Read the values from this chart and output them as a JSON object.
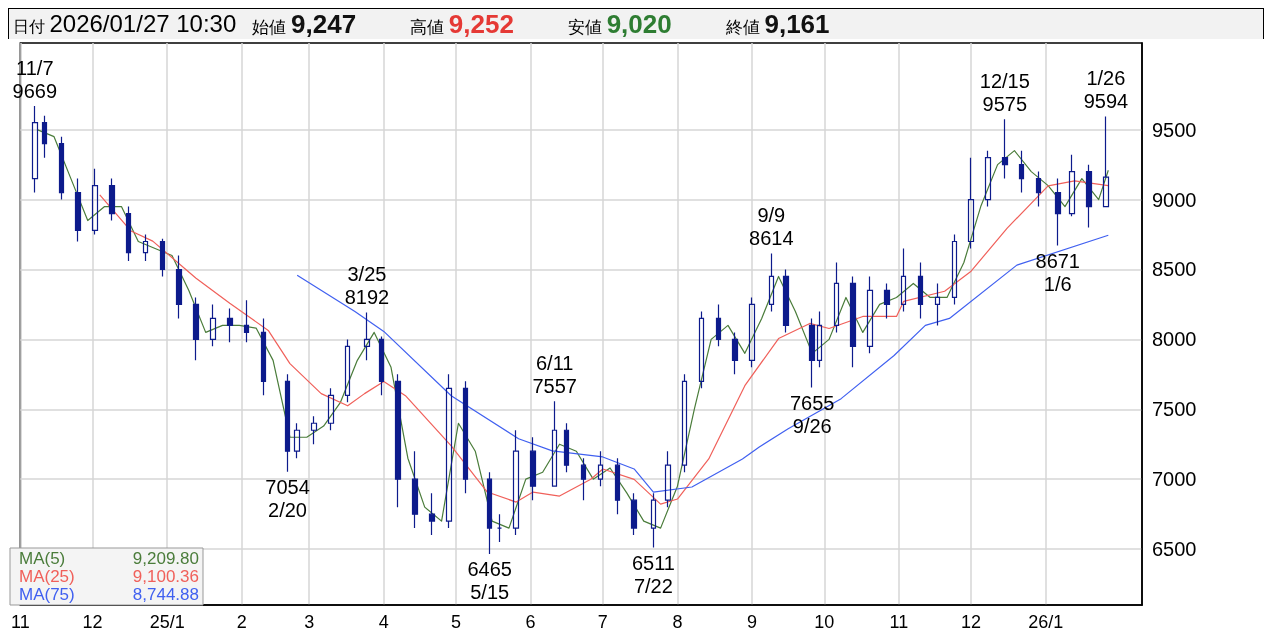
{
  "chart_data": {
    "type": "candlestick",
    "title": "日付 2026/01/27 10:30",
    "annotations": [
      "始値 9,247",
      "高値 9,252",
      "安値 9,020",
      "終値 9,161",
      "9,209.80",
      "9,100.36",
      "8,744.88",
      {
        "text": "11/7\n9669",
        "x": "2024-11-07",
        "y": 9669
      },
      {
        "text": "7054\n2/20",
        "x": "2025-02-20",
        "y": 7054
      },
      {
        "text": "3/25\n8192",
        "x": "2025-03-25",
        "y": 8192
      },
      {
        "text": "6465\n5/15",
        "x": "2025-05-15",
        "y": 6465
      },
      {
        "text": "6/11\n7557",
        "x": "2025-06-11",
        "y": 7557
      },
      {
        "text": "6511\n7/22",
        "x": "2025-07-22",
        "y": 6511
      },
      {
        "text": "9/9\n8614",
        "x": "2025-09-09",
        "y": 8614
      },
      {
        "text": "7655\n9/26",
        "x": "2025-09-26",
        "y": 7655
      },
      {
        "text": "12/15\n9575",
        "x": "2025-12-15",
        "y": 9575
      },
      {
        "text": "8671\n1/6",
        "x": "2026-01-06",
        "y": 8671
      },
      {
        "text": "1/26\n9594",
        "x": "2026-01-26",
        "y": 9594
      }
    ],
    "color": "#0d1b8c",
    "x": [
      "2024-11-07",
      "2024-11-11",
      "2024-11-18",
      "2024-11-25",
      "2024-12-02",
      "2024-12-09",
      "2024-12-16",
      "2024-12-23",
      "2024-12-30",
      "2025-01-06",
      "2025-01-13",
      "2025-01-20",
      "2025-01-27",
      "2025-02-03",
      "2025-02-10",
      "2025-02-20",
      "2025-02-24",
      "2025-03-03",
      "2025-03-10",
      "2025-03-17",
      "2025-03-25",
      "2025-03-31",
      "2025-04-07",
      "2025-04-14",
      "2025-04-21",
      "2025-04-28",
      "2025-05-05",
      "2025-05-15",
      "2025-05-19",
      "2025-05-26",
      "2025-06-02",
      "2025-06-11",
      "2025-06-16",
      "2025-06-23",
      "2025-06-30",
      "2025-07-07",
      "2025-07-14",
      "2025-07-22",
      "2025-07-28",
      "2025-08-04",
      "2025-08-11",
      "2025-08-18",
      "2025-08-25",
      "2025-09-01",
      "2025-09-09",
      "2025-09-15",
      "2025-09-26",
      "2025-09-29",
      "2025-10-06",
      "2025-10-13",
      "2025-10-20",
      "2025-10-27",
      "2025-11-03",
      "2025-11-10",
      "2025-11-17",
      "2025-11-24",
      "2025-12-01",
      "2025-12-08",
      "2025-12-15",
      "2025-12-22",
      "2025-12-29",
      "2026-01-06",
      "2026-01-12",
      "2026-01-19",
      "2026-01-26"
    ],
    "ohlc": [
      [
        9150,
        9669,
        9050,
        9550
      ],
      [
        9550,
        9600,
        9300,
        9400
      ],
      [
        9400,
        9450,
        9000,
        9050
      ],
      [
        9050,
        9150,
        8700,
        8780
      ],
      [
        8780,
        9220,
        8750,
        9100
      ],
      [
        9100,
        9150,
        8850,
        8900
      ],
      [
        8900,
        8950,
        8560,
        8620
      ],
      [
        8620,
        8750,
        8560,
        8700
      ],
      [
        8700,
        8720,
        8450,
        8500
      ],
      [
        8500,
        8600,
        8150,
        8250
      ],
      [
        8250,
        8300,
        7850,
        8000
      ],
      [
        8000,
        8250,
        7950,
        8150
      ],
      [
        8150,
        8220,
        7980,
        8100
      ],
      [
        8100,
        8280,
        7980,
        8050
      ],
      [
        8050,
        8150,
        7600,
        7700
      ],
      [
        7700,
        7750,
        7054,
        7200
      ],
      [
        7200,
        7400,
        7150,
        7350
      ],
      [
        7350,
        7450,
        7250,
        7400
      ],
      [
        7400,
        7650,
        7350,
        7600
      ],
      [
        7600,
        8000,
        7550,
        7950
      ],
      [
        7950,
        8192,
        7850,
        8000
      ],
      [
        8000,
        8020,
        7600,
        7700
      ],
      [
        7700,
        7750,
        6800,
        7000
      ],
      [
        7000,
        7200,
        6650,
        6750
      ],
      [
        6750,
        6900,
        6600,
        6700
      ],
      [
        6700,
        7750,
        6650,
        7650
      ],
      [
        7650,
        7700,
        6900,
        7000
      ],
      [
        7000,
        7050,
        6465,
        6650
      ],
      [
        6650,
        6750,
        6550,
        6650
      ],
      [
        6650,
        7350,
        6600,
        7200
      ],
      [
        7200,
        7300,
        6850,
        6950
      ],
      [
        6950,
        7557,
        6950,
        7350
      ],
      [
        7350,
        7400,
        7050,
        7100
      ],
      [
        7100,
        7150,
        6850,
        7000
      ],
      [
        7000,
        7200,
        6950,
        7100
      ],
      [
        7100,
        7150,
        6750,
        6850
      ],
      [
        6850,
        6900,
        6600,
        6650
      ],
      [
        6650,
        6900,
        6511,
        6850
      ],
      [
        6850,
        7200,
        6800,
        7100
      ],
      [
        7100,
        7750,
        7050,
        7700
      ],
      [
        7700,
        8200,
        7650,
        8150
      ],
      [
        8150,
        8250,
        7950,
        8000
      ],
      [
        8000,
        8050,
        7750,
        7850
      ],
      [
        7850,
        8300,
        7800,
        8250
      ],
      [
        8250,
        8614,
        8200,
        8450
      ],
      [
        8450,
        8500,
        8050,
        8100
      ],
      [
        8100,
        8150,
        7655,
        7850
      ],
      [
        7850,
        8200,
        7800,
        8100
      ],
      [
        8100,
        8550,
        8050,
        8400
      ],
      [
        8400,
        8450,
        7800,
        7950
      ],
      [
        7950,
        8450,
        7900,
        8350
      ],
      [
        8350,
        8400,
        8150,
        8250
      ],
      [
        8250,
        8650,
        8200,
        8450
      ],
      [
        8450,
        8550,
        8150,
        8250
      ],
      [
        8250,
        8400,
        8100,
        8300
      ],
      [
        8300,
        8750,
        8250,
        8700
      ],
      [
        8700,
        9300,
        8650,
        9000
      ],
      [
        9000,
        9350,
        8950,
        9300
      ],
      [
        9300,
        9575,
        9150,
        9250
      ],
      [
        9250,
        9350,
        9050,
        9150
      ],
      [
        9150,
        9200,
        8950,
        9050
      ],
      [
        9050,
        9150,
        8671,
        8900
      ],
      [
        8900,
        9320,
        8880,
        9200
      ],
      [
        9200,
        9250,
        8800,
        8950
      ],
      [
        8950,
        9594,
        8950,
        9161
      ]
    ],
    "series": [
      {
        "name": "MA(5)",
        "type": "line",
        "color": "#4a7c3a",
        "x": [
          "2024-11-08",
          "2024-11-15",
          "2024-11-22",
          "2024-11-29",
          "2024-12-06",
          "2024-12-13",
          "2024-12-20",
          "2024-12-27",
          "2025-01-03",
          "2025-01-10",
          "2025-01-17",
          "2025-01-24",
          "2025-01-31",
          "2025-02-07",
          "2025-02-14",
          "2025-02-21",
          "2025-02-28",
          "2025-03-07",
          "2025-03-14",
          "2025-03-21",
          "2025-03-28",
          "2025-04-04",
          "2025-04-11",
          "2025-04-18",
          "2025-04-25",
          "2025-05-02",
          "2025-05-09",
          "2025-05-16",
          "2025-05-23",
          "2025-05-30",
          "2025-06-06",
          "2025-06-13",
          "2025-06-20",
          "2025-06-27",
          "2025-07-04",
          "2025-07-11",
          "2025-07-18",
          "2025-07-25",
          "2025-08-01",
          "2025-08-08",
          "2025-08-15",
          "2025-08-22",
          "2025-08-29",
          "2025-09-05",
          "2025-09-12",
          "2025-09-19",
          "2025-09-26",
          "2025-10-03",
          "2025-10-10",
          "2025-10-17",
          "2025-10-24",
          "2025-10-31",
          "2025-11-07",
          "2025-11-14",
          "2025-11-21",
          "2025-11-28",
          "2025-12-05",
          "2025-12-12",
          "2025-12-19",
          "2025-12-26",
          "2026-01-02",
          "2026-01-09",
          "2026-01-16",
          "2026-01-23",
          "2026-01-27"
        ],
        "values": [
          9500,
          9450,
          9150,
          8850,
          8950,
          8950,
          8700,
          8650,
          8600,
          8350,
          8050,
          8100,
          8100,
          8080,
          7850,
          7300,
          7300,
          7380,
          7550,
          7850,
          8050,
          7800,
          7150,
          6800,
          6700,
          7400,
          7200,
          6700,
          6650,
          7000,
          7050,
          7250,
          7200,
          7000,
          7080,
          6900,
          6700,
          6650,
          6950,
          7500,
          8000,
          8100,
          7900,
          8150,
          8450,
          8200,
          7900,
          8000,
          8300,
          8050,
          8250,
          8300,
          8400,
          8300,
          8300,
          8550,
          8950,
          9250,
          9350,
          9200,
          9100,
          8950,
          9150,
          9000,
          9210
        ]
      },
      {
        "name": "MA(25)",
        "type": "line",
        "color": "#f0605a",
        "x": [
          "2024-12-04",
          "2024-12-17",
          "2024-12-26",
          "2025-01-13",
          "2025-01-27",
          "2025-02-12",
          "2025-02-21",
          "2025-03-06",
          "2025-03-17",
          "2025-03-24",
          "2025-04-01",
          "2025-04-10",
          "2025-04-29",
          "2025-05-14",
          "2025-05-26",
          "2025-06-02",
          "2025-06-13",
          "2025-06-26",
          "2025-07-01",
          "2025-07-14",
          "2025-07-25",
          "2025-08-01",
          "2025-08-14",
          "2025-08-29",
          "2025-09-12",
          "2025-09-25",
          "2025-10-03",
          "2025-10-17",
          "2025-10-31",
          "2025-11-03",
          "2025-11-20",
          "2025-12-01",
          "2025-12-16",
          "2026-01-02",
          "2026-01-13",
          "2026-01-27"
        ],
        "values": [
          9033,
          8775,
          8703,
          8437,
          8258,
          8064,
          7827,
          7612,
          7525,
          7612,
          7698,
          7597,
          7238,
          6908,
          6836,
          6908,
          6879,
          6999,
          7073,
          6999,
          6822,
          6858,
          7145,
          7669,
          8006,
          8114,
          8078,
          8164,
          8164,
          8272,
          8344,
          8488,
          8796,
          9098,
          9134,
          9100
        ]
      },
      {
        "name": "MA(75)",
        "type": "line",
        "color": "#4060f0",
        "x": [
          "2025-02-24",
          "2025-03-20",
          "2025-04-01",
          "2025-04-29",
          "2025-05-27",
          "2025-06-10",
          "2025-07-01",
          "2025-07-14",
          "2025-07-22",
          "2025-08-07",
          "2025-08-28",
          "2025-09-04",
          "2025-09-16",
          "2025-10-08",
          "2025-10-30",
          "2025-11-12",
          "2025-11-22",
          "2025-12-20",
          "2026-01-27"
        ],
        "values": [
          8459,
          8200,
          8057,
          7597,
          7289,
          7202,
          7159,
          7073,
          6908,
          6944,
          7145,
          7230,
          7360,
          7576,
          7885,
          8100,
          8150,
          8531,
          8745
        ]
      }
    ],
    "xlim": [
      "2024-11-01",
      "2026-02-10"
    ],
    "xticks": [
      {
        "value": "2024-11-01",
        "label": "11"
      },
      {
        "value": "2024-12-01",
        "label": "12"
      },
      {
        "value": "2025-01-01",
        "label": "25/1"
      },
      {
        "value": "2025-02-01",
        "label": "2"
      },
      {
        "value": "2025-03-01",
        "label": "3"
      },
      {
        "value": "2025-04-01",
        "label": "4"
      },
      {
        "value": "2025-05-01",
        "label": "5"
      },
      {
        "value": "2025-06-01",
        "label": "6"
      },
      {
        "value": "2025-07-01",
        "label": "7"
      },
      {
        "value": "2025-08-01",
        "label": "8"
      },
      {
        "value": "2025-09-01",
        "label": "9"
      },
      {
        "value": "2025-10-01",
        "label": "10"
      },
      {
        "value": "2025-11-01",
        "label": "11"
      },
      {
        "value": "2025-12-01",
        "label": "12"
      },
      {
        "value": "2026-01-01",
        "label": "26/1"
      }
    ],
    "ylim": [
      6100,
      10120
    ],
    "yticks": [
      6500,
      7000,
      7500,
      8000,
      8500,
      9000,
      9500
    ],
    "grid": true,
    "legend": "bottom left"
  }
}
